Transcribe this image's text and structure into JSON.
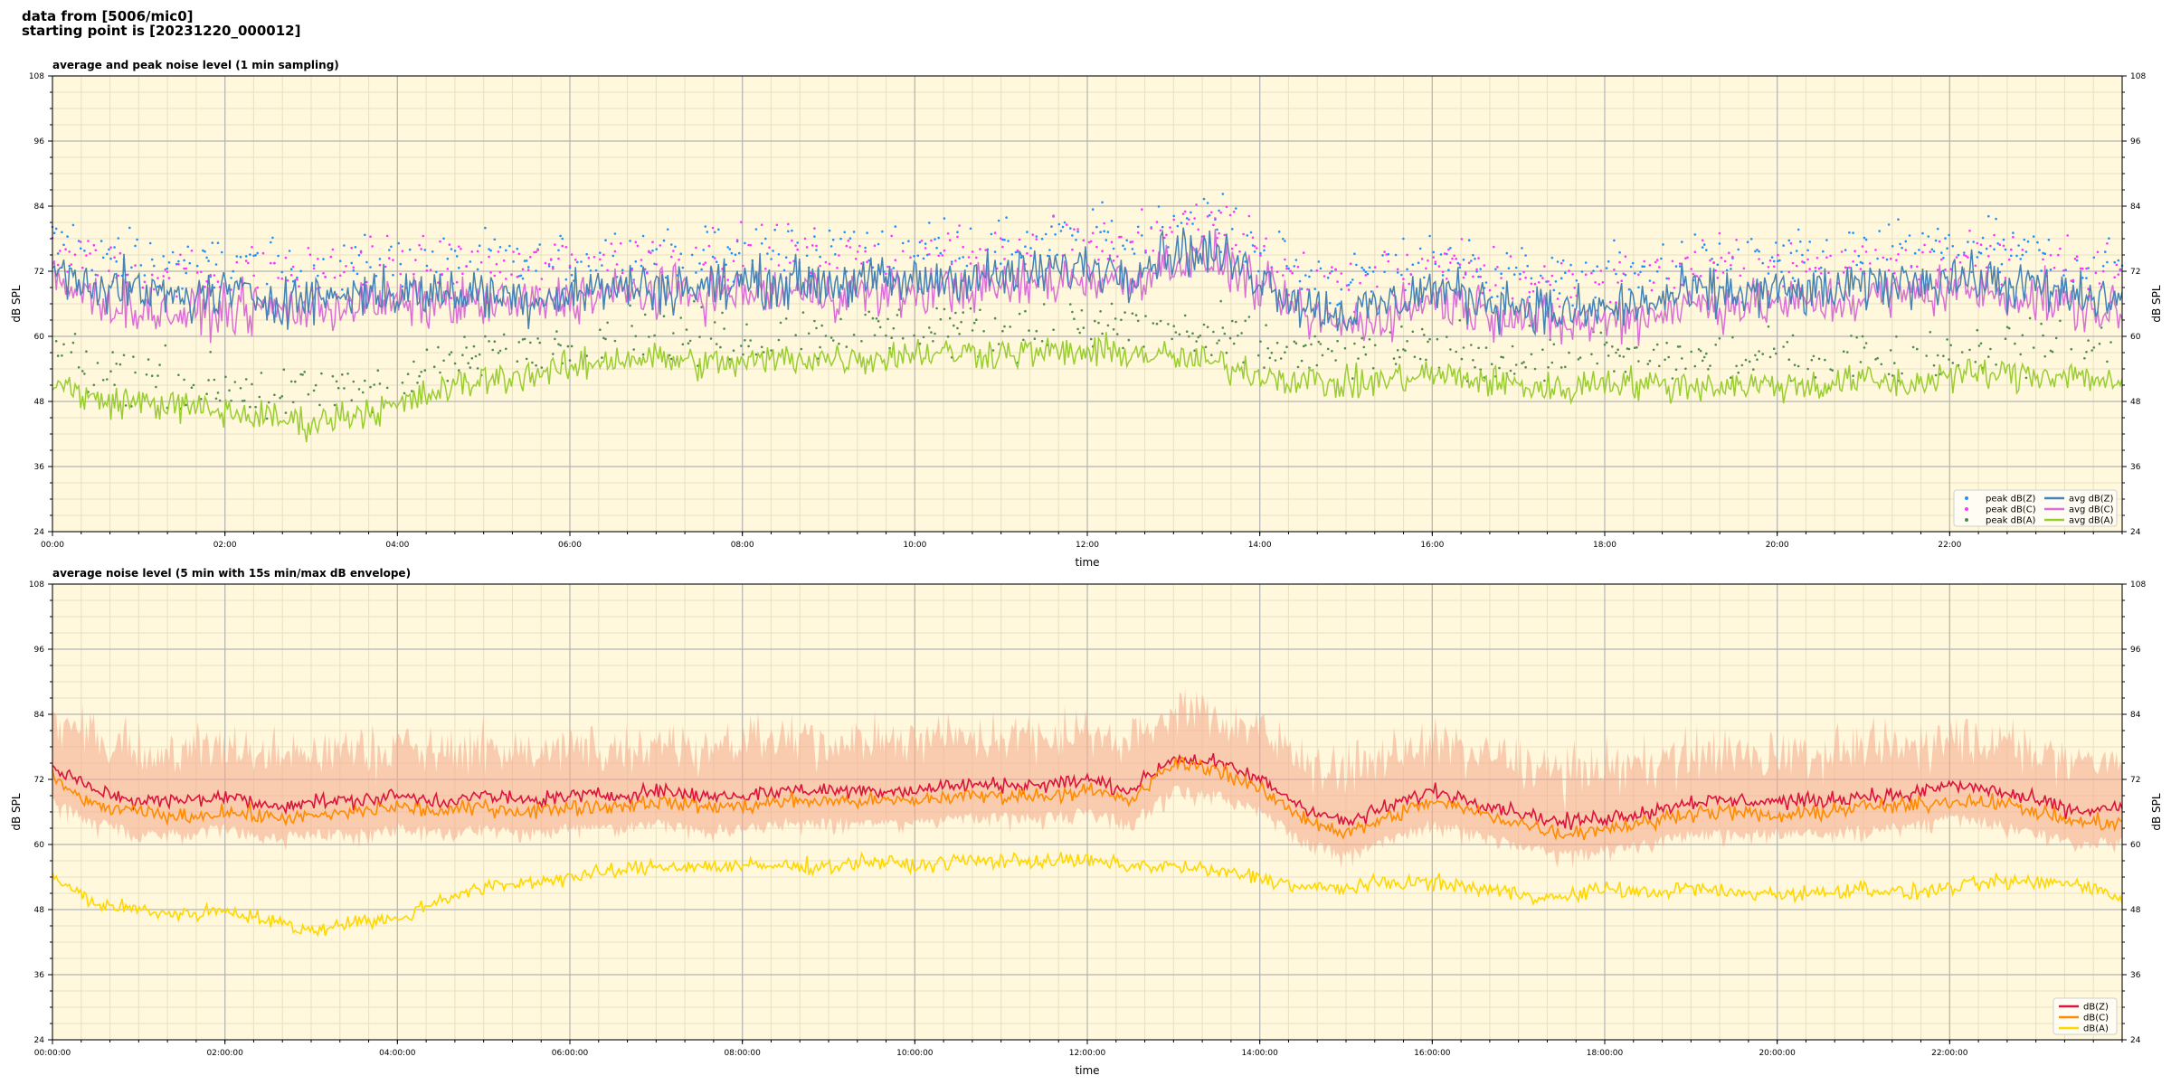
{
  "header": {
    "line1": "data from [5006/mic0]",
    "line2": "starting point is [20231220_000012]"
  },
  "colors": {
    "plot_bg": "#fff8dc",
    "grid_major": "#b4b4b4",
    "grid_minor": "#e8e0c0",
    "peak_z": "#1e90ff",
    "peak_c": "#ff33ff",
    "peak_a": "#4f8a4f",
    "avg_z": "#4682b4",
    "avg_c": "#da70d6",
    "avg_a": "#9acd32",
    "z": "#dc143c",
    "c": "#ff8c00",
    "a": "#ffd700",
    "envelope": "#f5a88a"
  },
  "chart_data": [
    {
      "type": "line",
      "title": "average and peak noise level (1 min sampling)",
      "xlabel": "time",
      "ylabel": "dB SPL",
      "xlim": [
        0,
        24
      ],
      "ylim": [
        24,
        108
      ],
      "yticks": [
        "24",
        "36",
        "48",
        "60",
        "72",
        "84",
        "96",
        "108"
      ],
      "xticks": [
        "00:00",
        "02:00",
        "04:00",
        "06:00",
        "08:00",
        "10:00",
        "12:00",
        "14:00",
        "16:00",
        "18:00",
        "20:00",
        "22:00"
      ],
      "grid": true,
      "legend_position": "bottom-right",
      "legend": [
        "peak dB(Z)",
        "peak dB(C)",
        "peak dB(A)",
        "avg dB(Z)",
        "avg dB(C)",
        "avg dB(A)"
      ],
      "x": [
        0,
        0.5,
        1,
        1.5,
        2,
        2.5,
        3,
        3.5,
        4,
        4.5,
        5,
        5.5,
        6,
        6.5,
        7,
        7.5,
        8,
        8.5,
        9,
        9.5,
        10,
        10.5,
        11,
        11.5,
        12,
        12.5,
        13,
        13.5,
        14,
        14.5,
        15,
        15.5,
        16,
        16.5,
        17,
        17.5,
        18,
        18.5,
        19,
        19.5,
        20,
        20.5,
        21,
        21.5,
        22,
        22.5,
        23,
        23.5,
        24
      ],
      "series": [
        {
          "name": "avg dB(Z)",
          "values": [
            72,
            70,
            68,
            67,
            68,
            67,
            67,
            68,
            68,
            68,
            68,
            67,
            68,
            69,
            69,
            69,
            70,
            70,
            70,
            70,
            70,
            71,
            71,
            72,
            73,
            72,
            76,
            75,
            71,
            66,
            64,
            66,
            69,
            67,
            66,
            64,
            65,
            66,
            68,
            68,
            68,
            68,
            69,
            70,
            71,
            70,
            69,
            67,
            67
          ]
        },
        {
          "name": "avg dB(C)",
          "values": [
            70,
            67,
            65,
            64,
            65,
            65,
            65,
            66,
            66,
            66,
            66,
            66,
            67,
            68,
            68,
            68,
            68,
            68,
            68,
            68,
            68,
            69,
            69,
            70,
            71,
            70,
            74,
            74,
            69,
            64,
            62,
            64,
            67,
            65,
            64,
            62,
            63,
            64,
            66,
            66,
            66,
            66,
            67,
            68,
            69,
            68,
            67,
            65,
            64
          ]
        },
        {
          "name": "avg dB(A)",
          "values": [
            52,
            48,
            48,
            47,
            46,
            45,
            44,
            46,
            47,
            50,
            52,
            53,
            54,
            56,
            56,
            55,
            55,
            56,
            56,
            56,
            57,
            57,
            57,
            57,
            57,
            57,
            56,
            55,
            53,
            52,
            51,
            52,
            53,
            52,
            51,
            50,
            52,
            51,
            51,
            51,
            51,
            51,
            52,
            51,
            53,
            53,
            53,
            53,
            51
          ]
        }
      ],
      "peak_offset_db": {
        "peak dB(Z)": 6,
        "peak dB(C)": 7,
        "peak dB(A)": 5
      }
    },
    {
      "type": "line",
      "title": "average noise level (5 min with 15s min/max dB envelope)",
      "xlabel": "time",
      "ylabel": "dB SPL",
      "xlim": [
        0,
        24
      ],
      "ylim": [
        24,
        108
      ],
      "yticks": [
        "24",
        "36",
        "48",
        "60",
        "72",
        "84",
        "96",
        "108"
      ],
      "xticks": [
        "00:00:00",
        "02:00:00",
        "04:00:00",
        "06:00:00",
        "08:00:00",
        "10:00:00",
        "12:00:00",
        "14:00:00",
        "16:00:00",
        "18:00:00",
        "20:00:00",
        "22:00:00"
      ],
      "grid": true,
      "legend_position": "bottom-right",
      "legend": [
        "dB(Z)",
        "dB(C)",
        "dB(A)"
      ],
      "x": [
        0,
        0.5,
        1,
        1.5,
        2,
        2.5,
        3,
        3.5,
        4,
        4.5,
        5,
        5.5,
        6,
        6.5,
        7,
        7.5,
        8,
        8.5,
        9,
        9.5,
        10,
        10.5,
        11,
        11.5,
        12,
        12.5,
        13,
        13.5,
        14,
        14.5,
        15,
        15.5,
        16,
        16.5,
        17,
        17.5,
        18,
        18.5,
        19,
        19.5,
        20,
        20.5,
        21,
        21.5,
        22,
        22.5,
        23,
        23.5,
        24
      ],
      "series": [
        {
          "name": "dB(Z)",
          "values": [
            74,
            70,
            68,
            68,
            69,
            67,
            68,
            68,
            69,
            68,
            69,
            68,
            69,
            69,
            70,
            69,
            69,
            70,
            70,
            70,
            70,
            71,
            71,
            71,
            72,
            70,
            76,
            75,
            72,
            67,
            64,
            67,
            70,
            68,
            66,
            64,
            65,
            66,
            68,
            68,
            68,
            68,
            69,
            69,
            71,
            70,
            68,
            66,
            67
          ]
        },
        {
          "name": "dB(C)",
          "values": [
            72,
            67,
            66,
            65,
            66,
            65,
            65,
            66,
            67,
            66,
            67,
            66,
            67,
            67,
            68,
            67,
            67,
            68,
            68,
            68,
            68,
            69,
            69,
            69,
            70,
            68,
            75,
            74,
            70,
            65,
            62,
            65,
            68,
            66,
            64,
            62,
            63,
            64,
            66,
            66,
            65,
            66,
            67,
            67,
            68,
            68,
            66,
            64,
            64
          ]
        },
        {
          "name": "dB(A)",
          "values": [
            54,
            49,
            48,
            47,
            48,
            46,
            44,
            46,
            46,
            50,
            52,
            53,
            54,
            55,
            56,
            56,
            56,
            56,
            56,
            57,
            56,
            57,
            57,
            57,
            57,
            56,
            56,
            55,
            54,
            52,
            52,
            53,
            53,
            52,
            51,
            50,
            52,
            51,
            52,
            51,
            51,
            51,
            52,
            51,
            52,
            53,
            53,
            53,
            50
          ]
        }
      ],
      "envelope_db": {
        "above": 9,
        "below": 5
      }
    }
  ]
}
